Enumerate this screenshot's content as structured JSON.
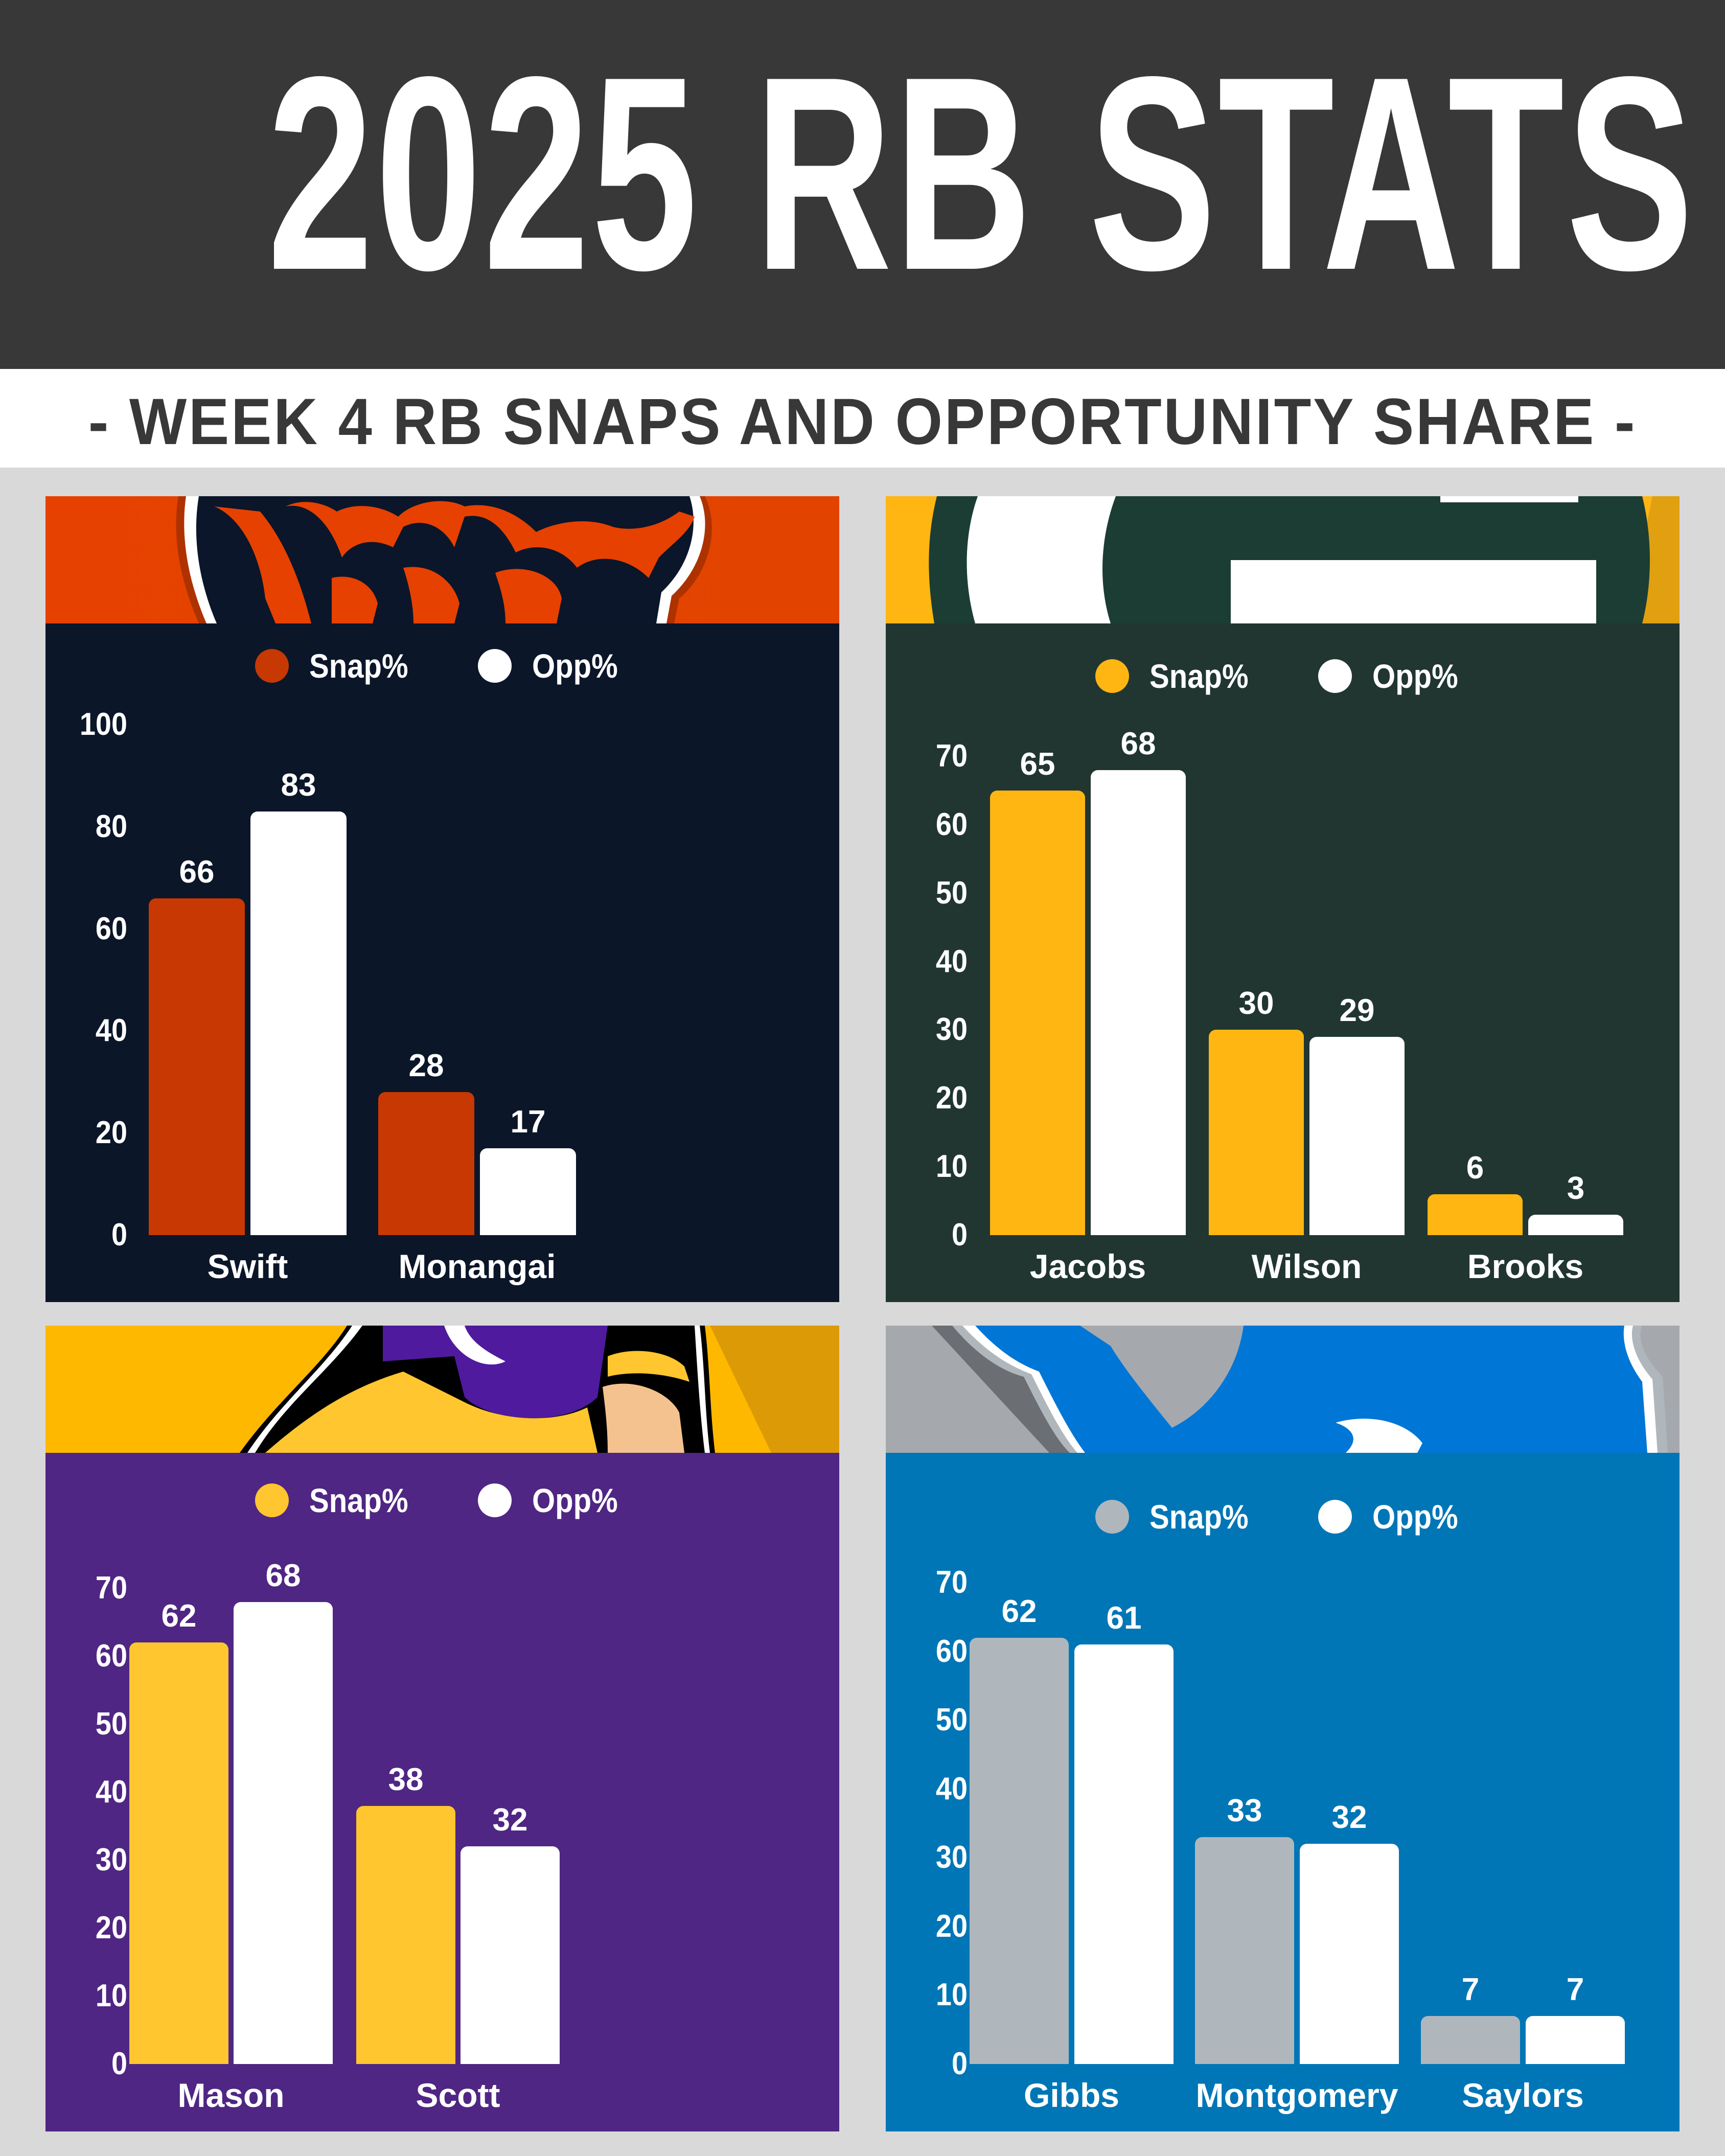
{
  "header": {
    "title": "2025 RB STATS",
    "subtitle": "- WEEK 4 RB SNAPS AND OPPORTUNITY SHARE -"
  },
  "legend": {
    "snap_label": "Snap%",
    "opp_label": "Opp%"
  },
  "colors": {
    "page_bg": "#d9d9d9",
    "header_bg": "#383838",
    "opp_bar": "#ffffff"
  },
  "chart_data": [
    {
      "type": "bar",
      "title": "Chicago Bears",
      "panel_bg": "#0c1629",
      "logo_band_bg": "#e64100",
      "snap_color": "#c83803",
      "categories": [
        "Swift",
        "Monangai"
      ],
      "series": [
        {
          "name": "Snap%",
          "values": [
            66,
            28
          ]
        },
        {
          "name": "Opp%",
          "values": [
            83,
            17
          ]
        }
      ],
      "yticks": [
        0,
        20,
        40,
        60,
        80,
        100
      ],
      "ylim": [
        0,
        100
      ],
      "grid": false,
      "legend_position": "top"
    },
    {
      "type": "bar",
      "title": "Green Bay Packers",
      "panel_bg": "#213631",
      "logo_band_bg": "#ffb612",
      "snap_color": "#ffb612",
      "categories": [
        "Jacobs",
        "Wilson",
        "Brooks"
      ],
      "series": [
        {
          "name": "Snap%",
          "values": [
            65,
            30,
            6
          ]
        },
        {
          "name": "Opp%",
          "values": [
            68,
            29,
            3
          ]
        }
      ],
      "yticks": [
        0,
        10,
        20,
        30,
        40,
        50,
        60,
        70
      ],
      "ylim": [
        0,
        70
      ],
      "grid": false,
      "legend_position": "top"
    },
    {
      "type": "bar",
      "title": "Minnesota Vikings",
      "panel_bg": "#4f2683",
      "logo_band_bg": "#ffb800",
      "snap_color": "#ffc62f",
      "categories": [
        "Mason",
        "Scott"
      ],
      "series": [
        {
          "name": "Snap%",
          "values": [
            62,
            38
          ]
        },
        {
          "name": "Opp%",
          "values": [
            68,
            32
          ]
        }
      ],
      "yticks": [
        0,
        10,
        20,
        30,
        40,
        50,
        60,
        70
      ],
      "ylim": [
        0,
        70
      ],
      "grid": false,
      "legend_position": "top"
    },
    {
      "type": "bar",
      "title": "Detroit Lions",
      "panel_bg": "#0076b6",
      "logo_band_bg": "#a5a9ae",
      "snap_color": "#b0b7bc",
      "categories": [
        "Gibbs",
        "Montgomery",
        "Saylors"
      ],
      "series": [
        {
          "name": "Snap%",
          "values": [
            62,
            33,
            7
          ]
        },
        {
          "name": "Opp%",
          "values": [
            61,
            32,
            7
          ]
        }
      ],
      "yticks": [
        0,
        10,
        20,
        30,
        40,
        50,
        60,
        70
      ],
      "ylim": [
        0,
        70
      ],
      "grid": false,
      "legend_position": "top"
    }
  ]
}
